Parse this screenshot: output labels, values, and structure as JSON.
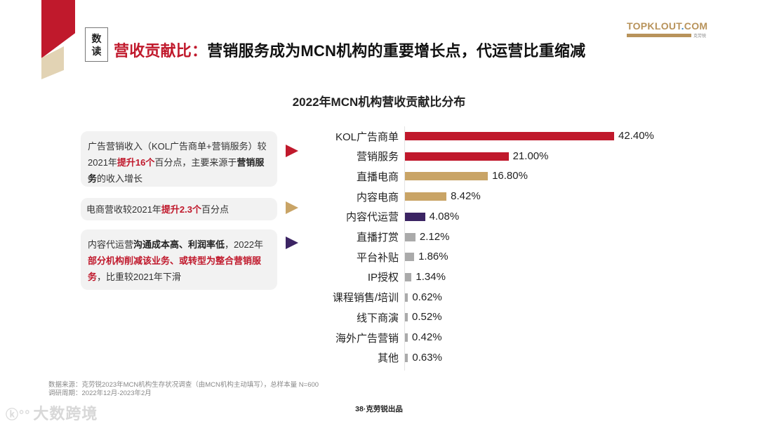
{
  "header": {
    "tag_line1": "数",
    "tag_line2": "读",
    "title_red": "营收贡献比：",
    "title_black": "营销服务成为MCN机构的重要增长点，代运营比重缩减"
  },
  "logo": {
    "main_a": "TOPKLOUT",
    "main_dot": ".",
    "main_b": "COM",
    "sub": "克劳锐"
  },
  "notes": [
    {
      "parts": [
        "广告营销收入（KOL广告商单+营销服务）较2021年",
        "提升16个",
        "百分点，主要来源于",
        "营销服务",
        "的收入增长"
      ],
      "arrow_color": "#c0192c"
    },
    {
      "parts": [
        "电商营收较2021年",
        "提升2.3个",
        "百分点"
      ],
      "arrow_color": "#c9a466"
    },
    {
      "parts": [
        "内容代运营",
        "沟通成本高、利润率低",
        "，2022年",
        "部分机构削减该业务、或转型为整合营销服务",
        "，比重较2021年下滑"
      ],
      "arrow_color": "#3b2463"
    }
  ],
  "chart_data": {
    "type": "bar",
    "orientation": "horizontal",
    "title": "2022年MCN机构营收贡献比分布",
    "xlabel": "",
    "ylabel": "",
    "unit": "%",
    "grid": false,
    "legend": null,
    "categories": [
      "KOL广告商单",
      "营销服务",
      "直播电商",
      "内容电商",
      "内容代运营",
      "直播打赏",
      "平台补贴",
      "IP授权",
      "课程销售/培训",
      "线下商演",
      "海外广告营销",
      "其他"
    ],
    "values": [
      42.4,
      21.0,
      16.8,
      8.42,
      4.08,
      2.12,
      1.86,
      1.34,
      0.62,
      0.52,
      0.42,
      0.63
    ],
    "labels": [
      "42.40%",
      "21.00%",
      "16.80%",
      "8.42%",
      "4.08%",
      "2.12%",
      "1.86%",
      "1.34%",
      "0.62%",
      "0.52%",
      "0.42%",
      "0.63%"
    ],
    "colors": [
      "#c0192c",
      "#c0192c",
      "#c9a466",
      "#c9a466",
      "#3b2463",
      "#aaaaaa",
      "#aaaaaa",
      "#aaaaaa",
      "#aaaaaa",
      "#aaaaaa",
      "#aaaaaa",
      "#aaaaaa"
    ]
  },
  "footer": {
    "source": "数据来源：克劳锐2023年MCN机构生存状况调查（由MCN机构主动填写），总样本量 N=600",
    "period": "调研周期：2022年12月-2023年2月",
    "page": "38·克劳锐出品",
    "watermark": "大数跨境"
  },
  "colors": {
    "brand_red": "#c0192c",
    "brand_tan": "#c9a466",
    "brand_purple": "#3b2463",
    "neutral_gray": "#aaaaaa"
  }
}
